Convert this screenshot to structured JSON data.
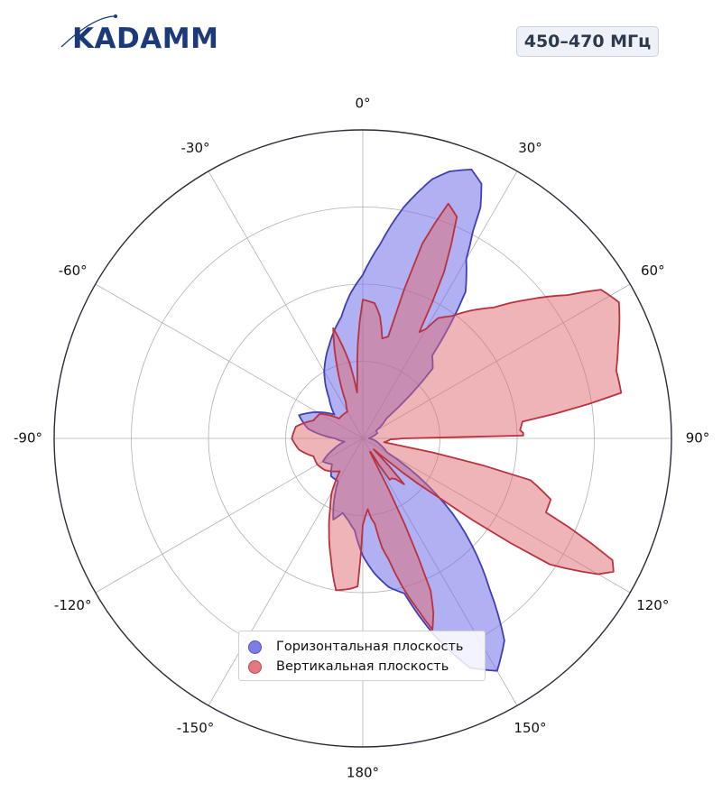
{
  "logo": {
    "text": "KADAMM"
  },
  "header": {
    "band": "450–470 МГц"
  },
  "colors": {
    "horizontal_fill": "#7070e8",
    "horizontal_edge": "#3f3fb5",
    "vertical_fill": "#e06a72",
    "vertical_edge": "#b9323e",
    "grid": "#b0b0b0",
    "outer_ring": "#2b2b3a"
  },
  "chart_data": {
    "type": "polar",
    "title": "",
    "theta_zero": "top",
    "theta_direction": "clockwise",
    "radial_range": [
      0,
      1
    ],
    "radial_gridlines": [
      0.25,
      0.5,
      0.75
    ],
    "radial_tick_labels": "hidden",
    "angular_ticks": [
      0,
      30,
      60,
      90,
      120,
      150,
      180,
      -150,
      -120,
      -90,
      -60,
      -30
    ],
    "angular_tick_labels": [
      "0°",
      "30°",
      "60°",
      "90°",
      "120°",
      "150°",
      "180°",
      "-150°",
      "-120°",
      "-90°",
      "-60°",
      "-30°"
    ],
    "grid": true,
    "legend_position": "bottom-center",
    "series": [
      {
        "name": "Горизонтальная плоскость",
        "theta_deg": [
          0,
          5,
          10,
          15,
          18,
          22,
          25,
          27,
          28,
          30,
          35,
          40,
          45,
          50,
          60,
          70,
          80,
          90,
          100,
          110,
          120,
          130,
          140,
          145,
          150,
          155,
          160,
          165,
          170,
          175,
          180,
          185,
          190,
          195,
          200,
          205,
          210,
          220,
          230,
          240,
          250,
          260,
          270,
          280,
          290,
          300,
          310,
          320,
          330,
          340,
          350,
          355,
          360
        ],
        "r": [
          0.53,
          0.63,
          0.76,
          0.87,
          0.91,
          0.94,
          0.91,
          0.84,
          0.76,
          0.67,
          0.58,
          0.35,
          0.32,
          0.1,
          0.05,
          0.05,
          0.03,
          0.02,
          0.04,
          0.06,
          0.09,
          0.38,
          0.64,
          0.8,
          0.87,
          0.82,
          0.68,
          0.52,
          0.49,
          0.44,
          0.38,
          0.3,
          0.27,
          0.25,
          0.28,
          0.22,
          0.16,
          0.16,
          0.13,
          0.15,
          0.1,
          0.06,
          0.09,
          0.18,
          0.22,
          0.17,
          0.12,
          0.17,
          0.25,
          0.32,
          0.4,
          0.47,
          0.53
        ]
      },
      {
        "name": "Вертикальная плоскость",
        "theta_deg": [
          0,
          5,
          8,
          11,
          14,
          17,
          20,
          23,
          26,
          28,
          30,
          32,
          36,
          40,
          45,
          50,
          55,
          58,
          62,
          66,
          70,
          75,
          80,
          84,
          87,
          88,
          89,
          90,
          92,
          96,
          100,
          104,
          108,
          112,
          116,
          118,
          120,
          124,
          128,
          132,
          135,
          138,
          141,
          144,
          147,
          150,
          152,
          154,
          156,
          158,
          160,
          162,
          165,
          168,
          170,
          172,
          174,
          176,
          178,
          180,
          182,
          185,
          190,
          195,
          200,
          205,
          210,
          215,
          220,
          225,
          230,
          240,
          250,
          260,
          270,
          280,
          290,
          300,
          310,
          320,
          330,
          335,
          340,
          345,
          350,
          353,
          355,
          357,
          360
        ],
        "r": [
          0.45,
          0.44,
          0.4,
          0.33,
          0.34,
          0.66,
          0.81,
          0.78,
          0.6,
          0.39,
          0.41,
          0.46,
          0.49,
          0.54,
          0.6,
          0.7,
          0.81,
          0.91,
          0.94,
          0.91,
          0.88,
          0.85,
          0.85,
          0.52,
          0.51,
          0.52,
          0.52,
          0.13,
          0.09,
          0.08,
          0.07,
          0.56,
          0.64,
          0.64,
          0.9,
          0.92,
          0.88,
          0.73,
          0.3,
          0.1,
          0.05,
          0.2,
          0.17,
          0.16,
          0.16,
          0.05,
          0.05,
          0.31,
          0.54,
          0.61,
          0.66,
          0.59,
          0.5,
          0.4,
          0.36,
          0.28,
          0.26,
          0.23,
          0.25,
          0.28,
          0.48,
          0.49,
          0.5,
          0.4,
          0.32,
          0.25,
          0.2,
          0.13,
          0.14,
          0.15,
          0.16,
          0.17,
          0.17,
          0.21,
          0.23,
          0.22,
          0.17,
          0.16,
          0.1,
          0.1,
          0.1,
          0.13,
          0.24,
          0.37,
          0.25,
          0.15,
          0.2,
          0.31,
          0.45
        ]
      }
    ]
  }
}
